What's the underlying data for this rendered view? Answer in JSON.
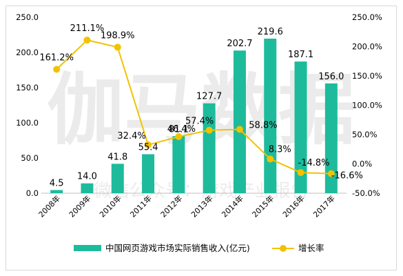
{
  "chart_data": {
    "type": "bar",
    "categories": [
      "2008年",
      "2009年",
      "2010年",
      "2011年",
      "2012年",
      "2013年",
      "2014年",
      "2015年",
      "2016年",
      "2017年"
    ],
    "series": [
      {
        "name": "中国网页游戏市场实际销售收入(亿元)",
        "type": "bar",
        "axis": "left",
        "color": "#1dbb9c",
        "values": [
          4.5,
          14.0,
          41.8,
          55.4,
          81.1,
          127.7,
          202.7,
          219.6,
          187.1,
          156.0
        ],
        "labels": [
          "4.5",
          "14.0",
          "41.8",
          "55.4",
          "81.1",
          "127.7",
          "202.7",
          "219.6",
          "187.1",
          "156.0"
        ]
      },
      {
        "name": "增长率",
        "type": "line",
        "axis": "right",
        "color": "#f2c200",
        "values": [
          161.2,
          211.1,
          198.9,
          32.4,
          46.4,
          57.4,
          58.8,
          8.3,
          -14.8,
          -16.6
        ],
        "labels": [
          "161.2%",
          "211.1%",
          "198.9%",
          "32.4%",
          "46.4%",
          "57.4%",
          "58.8%",
          "8.3%",
          "-14.8%",
          "-16.6%"
        ]
      }
    ],
    "y_left": {
      "ylim": [
        0,
        250
      ],
      "ticks": [
        "0.0",
        "50.0",
        "100.0",
        "150.0",
        "200.0",
        "250.0"
      ]
    },
    "y_right": {
      "ylim": [
        -50,
        250
      ],
      "ticks": [
        "-50.0%",
        "0.0%",
        "50.0%",
        "100.0%",
        "150.0%",
        "200.0%",
        "250.0%"
      ]
    },
    "legend_position": "bottom",
    "grid": false
  },
  "watermark": {
    "big": "伽马数据",
    "small": "微信公众号：游戏产业报告"
  }
}
